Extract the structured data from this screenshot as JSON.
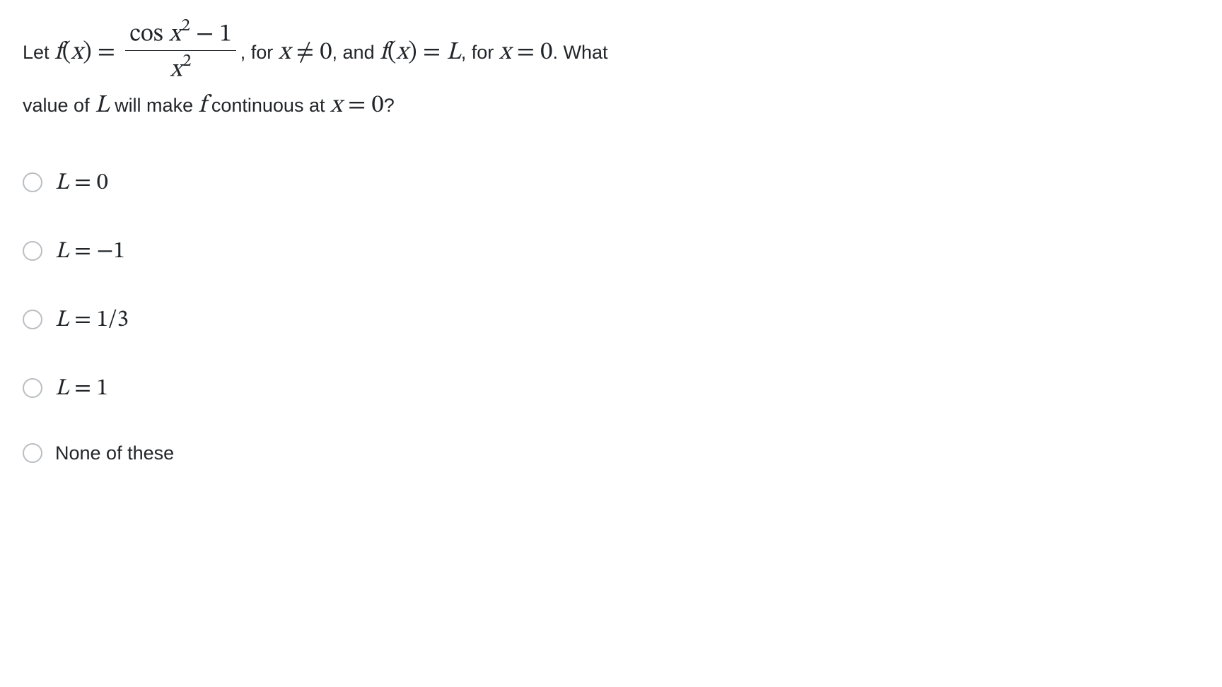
{
  "question": {
    "text_let": "Let ",
    "fx_eq": "f(x) = ",
    "frac_num_pre": "cos ",
    "frac_num_var": "x",
    "frac_num_exp": "2",
    "frac_num_post": " − 1",
    "frac_den_var": "x",
    "frac_den_exp": "2",
    "text_for1": ", for ",
    "cond1": "x ≠ 0",
    "text_and": ", and ",
    "fx_eq_L": "f(x) = L",
    "text_for2": ", for ",
    "cond2": "x = 0",
    "text_dot_what": ". What",
    "line2_a": "value of ",
    "line2_L": "L",
    "line2_b": " will make ",
    "line2_f": "f",
    "line2_c": " continuous at ",
    "line2_cond": "x = 0",
    "line2_q": "?"
  },
  "options": [
    {
      "kind": "math",
      "label": "L = 0"
    },
    {
      "kind": "math",
      "label": "L = −1"
    },
    {
      "kind": "math",
      "label": "L = 1/3"
    },
    {
      "kind": "math",
      "label": "L = 1"
    },
    {
      "kind": "text",
      "label": "None of these"
    }
  ],
  "style": {
    "text_color": "#212529",
    "radio_border": "#babec2",
    "background": "#ffffff",
    "question_fontsize": 27,
    "math_fontsize": 35,
    "option_fontsize": 27,
    "option_math_fontsize": 33,
    "option_gap": 56,
    "radio_size": 28
  }
}
